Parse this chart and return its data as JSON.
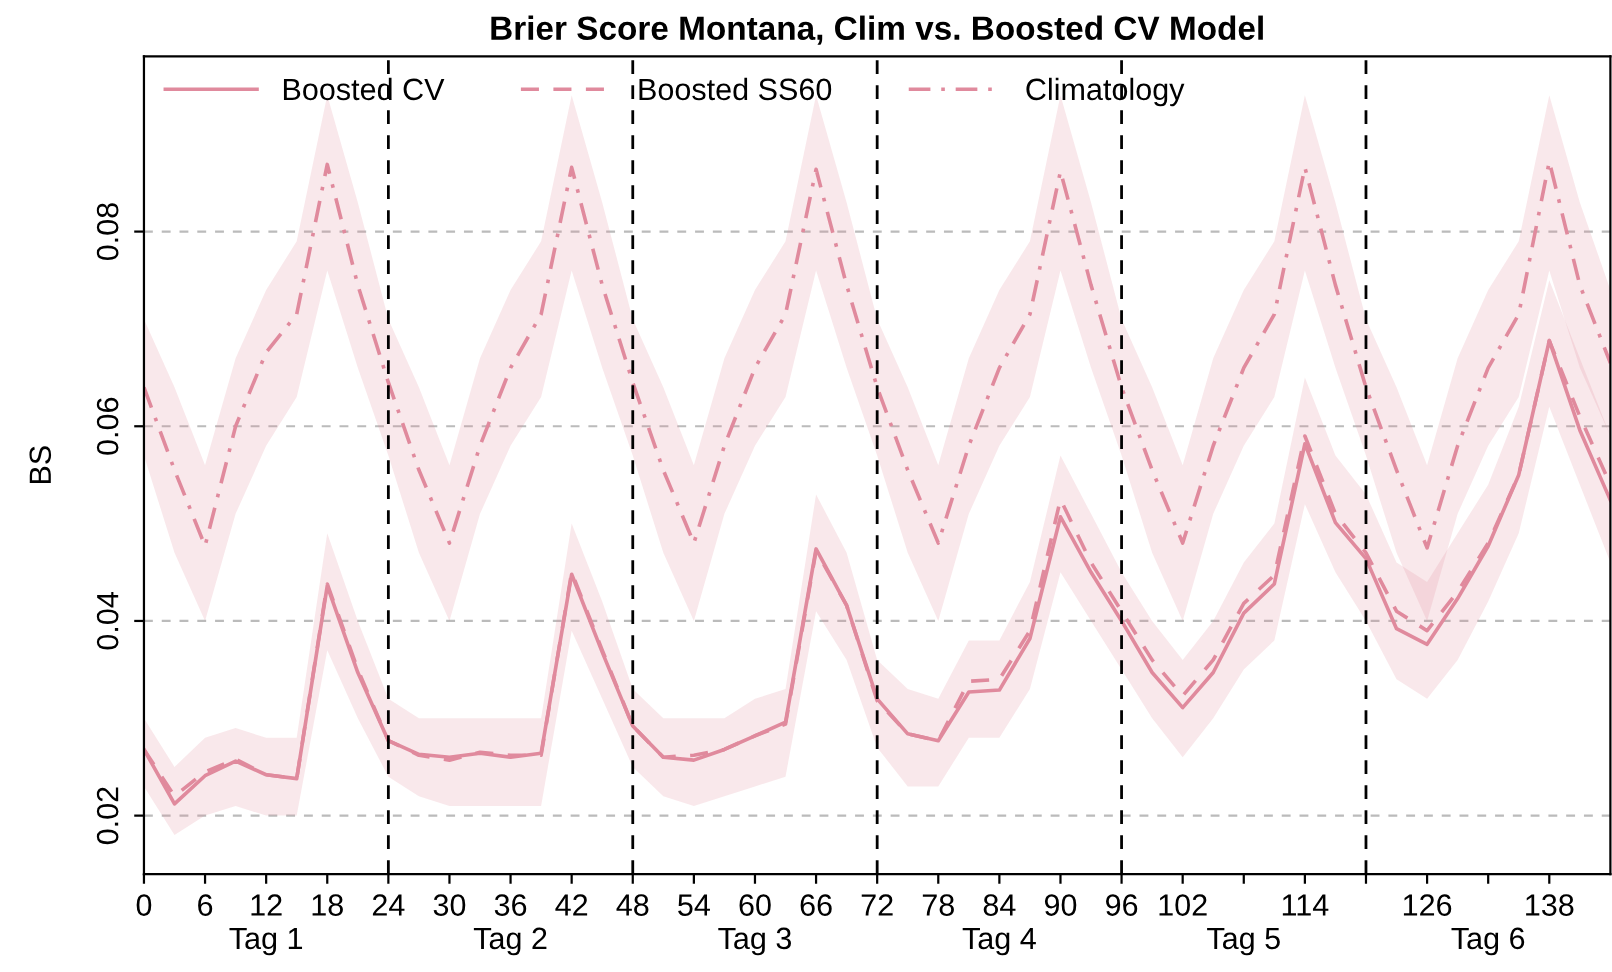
{
  "chart_data": {
    "type": "line",
    "title": "Brier Score Montana, Clim vs. Boosted CV Model",
    "ylabel": "BS",
    "x": [
      0,
      3,
      6,
      9,
      12,
      15,
      18,
      21,
      24,
      27,
      30,
      33,
      36,
      39,
      42,
      45,
      48,
      51,
      54,
      57,
      60,
      63,
      66,
      69,
      72,
      75,
      78,
      81,
      84,
      87,
      90,
      93,
      96,
      99,
      102,
      105,
      108,
      111,
      114,
      117,
      120,
      123,
      126,
      129,
      132,
      135,
      138,
      141,
      144
    ],
    "series": [
      {
        "name": "Boosted CV",
        "color": "#e08a9d",
        "line_style": "solid",
        "values": [
          0.0268,
          0.0212,
          0.0241,
          0.0256,
          0.0242,
          0.0238,
          0.0436,
          0.0347,
          0.0277,
          0.0263,
          0.026,
          0.0264,
          0.026,
          0.0264,
          0.0448,
          0.0368,
          0.0292,
          0.026,
          0.0257,
          0.0268,
          0.0282,
          0.0296,
          0.0474,
          0.0416,
          0.032,
          0.0284,
          0.0277,
          0.0327,
          0.0329,
          0.0382,
          0.0507,
          0.045,
          0.04,
          0.0347,
          0.0311,
          0.0347,
          0.0408,
          0.0438,
          0.0582,
          0.0501,
          0.0464,
          0.0392,
          0.0376,
          0.0423,
          0.0477,
          0.055,
          0.0688,
          0.0596,
          0.0524
        ],
        "lower": [
          0.023,
          0.018,
          0.02,
          0.021,
          0.02,
          0.02,
          0.037,
          0.03,
          0.024,
          0.022,
          0.021,
          0.021,
          0.021,
          0.021,
          0.039,
          0.032,
          0.025,
          0.022,
          0.021,
          0.022,
          0.023,
          0.024,
          0.041,
          0.036,
          0.027,
          0.023,
          0.023,
          0.028,
          0.028,
          0.033,
          0.045,
          0.04,
          0.035,
          0.03,
          0.026,
          0.03,
          0.035,
          0.038,
          0.052,
          0.045,
          0.04,
          0.034,
          0.032,
          0.036,
          0.042,
          0.049,
          0.062,
          0.054,
          0.046
        ],
        "upper": [
          0.03,
          0.025,
          0.028,
          0.029,
          0.028,
          0.028,
          0.049,
          0.04,
          0.032,
          0.03,
          0.03,
          0.03,
          0.03,
          0.03,
          0.05,
          0.042,
          0.033,
          0.03,
          0.03,
          0.03,
          0.032,
          0.033,
          0.053,
          0.047,
          0.036,
          0.033,
          0.032,
          0.038,
          0.038,
          0.044,
          0.057,
          0.051,
          0.045,
          0.04,
          0.036,
          0.04,
          0.046,
          0.05,
          0.065,
          0.057,
          0.053,
          0.046,
          0.044,
          0.049,
          0.054,
          0.062,
          0.075,
          0.067,
          0.059
        ]
      },
      {
        "name": "Boosted SS60",
        "color": "#e08a9d",
        "line_style": "dashed",
        "values": [
          0.0268,
          0.022,
          0.0245,
          0.0258,
          0.0242,
          0.0238,
          0.0438,
          0.035,
          0.0277,
          0.0262,
          0.0257,
          0.0265,
          0.0262,
          0.0262,
          0.045,
          0.037,
          0.0292,
          0.026,
          0.0262,
          0.0268,
          0.0282,
          0.0294,
          0.0472,
          0.0416,
          0.0318,
          0.0284,
          0.0277,
          0.0338,
          0.034,
          0.039,
          0.0525,
          0.046,
          0.041,
          0.036,
          0.0323,
          0.036,
          0.0418,
          0.0447,
          0.059,
          0.051,
          0.047,
          0.041,
          0.039,
          0.043,
          0.048,
          0.055,
          0.0688,
          0.061,
          0.054
        ]
      },
      {
        "name": "Climatology",
        "color": "#e08a9d",
        "line_style": "dashdot",
        "values": [
          0.064,
          0.0555,
          0.0477,
          0.06,
          0.0676,
          0.0715,
          0.0869,
          0.0745,
          0.0645,
          0.0555,
          0.048,
          0.058,
          0.066,
          0.0715,
          0.0866,
          0.0745,
          0.0645,
          0.0555,
          0.048,
          0.058,
          0.066,
          0.0715,
          0.0864,
          0.0745,
          0.064,
          0.0555,
          0.048,
          0.058,
          0.066,
          0.0715,
          0.0862,
          0.0745,
          0.064,
          0.0555,
          0.048,
          0.058,
          0.066,
          0.0715,
          0.0866,
          0.0745,
          0.064,
          0.0555,
          0.0475,
          0.058,
          0.066,
          0.0715,
          0.0872,
          0.0745,
          0.0665
        ],
        "lower": [
          0.057,
          0.047,
          0.04,
          0.051,
          0.058,
          0.063,
          0.076,
          0.066,
          0.057,
          0.047,
          0.04,
          0.051,
          0.058,
          0.063,
          0.076,
          0.066,
          0.057,
          0.047,
          0.04,
          0.051,
          0.058,
          0.063,
          0.076,
          0.066,
          0.057,
          0.047,
          0.04,
          0.051,
          0.058,
          0.063,
          0.076,
          0.066,
          0.057,
          0.047,
          0.04,
          0.051,
          0.058,
          0.063,
          0.076,
          0.066,
          0.057,
          0.047,
          0.04,
          0.051,
          0.058,
          0.063,
          0.076,
          0.066,
          0.059
        ],
        "upper": [
          0.071,
          0.064,
          0.056,
          0.067,
          0.074,
          0.079,
          0.094,
          0.083,
          0.071,
          0.064,
          0.056,
          0.067,
          0.074,
          0.079,
          0.094,
          0.083,
          0.071,
          0.064,
          0.056,
          0.067,
          0.074,
          0.079,
          0.094,
          0.083,
          0.071,
          0.064,
          0.056,
          0.067,
          0.074,
          0.079,
          0.094,
          0.083,
          0.071,
          0.064,
          0.056,
          0.067,
          0.074,
          0.079,
          0.094,
          0.083,
          0.071,
          0.064,
          0.056,
          0.067,
          0.074,
          0.079,
          0.094,
          0.083,
          0.074
        ]
      }
    ],
    "xlim": [
      0,
      144
    ],
    "ylim": [
      0.014,
      0.098
    ],
    "xticks": [
      0,
      6,
      12,
      18,
      24,
      30,
      36,
      42,
      48,
      54,
      60,
      66,
      72,
      78,
      84,
      90,
      96,
      102,
      {
        "value": 108,
        "label": null
      },
      114,
      {
        "value": 120,
        "label": null
      },
      126,
      {
        "value": 132,
        "label": null
      },
      138
    ],
    "yticks": [
      0.02,
      0.04,
      0.06,
      0.08
    ],
    "ref_lines": [
      {
        "axis": "x",
        "value": 24,
        "color": "#000000",
        "line_style": "dashed"
      },
      {
        "axis": "x",
        "value": 48,
        "color": "#000000",
        "line_style": "dashed"
      },
      {
        "axis": "x",
        "value": 72,
        "color": "#000000",
        "line_style": "dashed"
      },
      {
        "axis": "x",
        "value": 96,
        "color": "#000000",
        "line_style": "dashed"
      },
      {
        "axis": "x",
        "value": 120,
        "color": "#000000",
        "line_style": "dashed"
      }
    ],
    "annotations": [
      "Tag 1",
      "Tag 2",
      "Tag 3",
      "Tag 4",
      "Tag 5",
      "Tag 6"
    ],
    "grid": "y",
    "legend": "top left"
  }
}
